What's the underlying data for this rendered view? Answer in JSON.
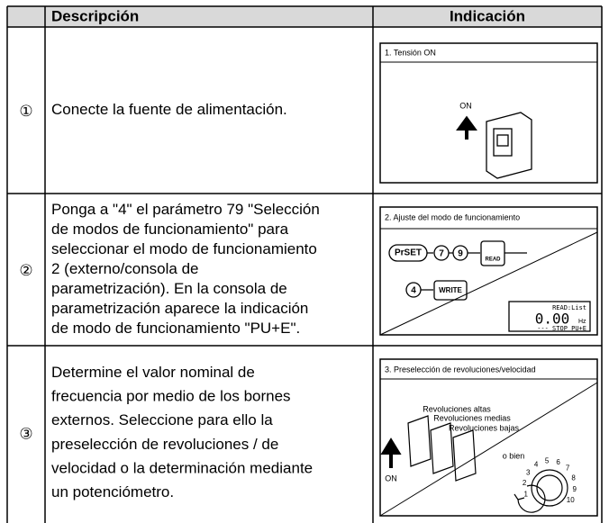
{
  "table": {
    "header": [
      "Descripción",
      "Indicación"
    ],
    "rows": [
      {
        "number": "①",
        "description": [
          "Conecte la fuente de alimentación."
        ],
        "indication": {
          "title": "1. Tensión ON",
          "labels": [
            "ON"
          ]
        }
      },
      {
        "number": "②",
        "description": [
          "Ponga a \"4\" el parámetro 79 \"Selección",
          "de modos de funcionamiento\" para",
          "seleccionar el modo de funcionamiento",
          "2 (externo/consola de",
          "parametrización). En la consola de",
          "parametrización aparece la indicación",
          "de modo de funcionamiento \"PU+E\"."
        ],
        "indication": {
          "title": "2. Ajuste del modo de funcionamiento",
          "labels": [
            "PrSET",
            "7",
            "9",
            "READ",
            "4",
            "WRITE",
            "READ:List",
            "0.00",
            "Hz",
            "--- STOP PU+E"
          ]
        }
      },
      {
        "number": "③",
        "description": [
          "Determine el valor nominal de",
          "frecuencia por medio de los bornes",
          "externos. Seleccione para ello la",
          "preselección de revoluciones / de",
          "velocidad o la determinación mediante",
          "un potenciómetro."
        ],
        "indication": {
          "title": "3. Preselección de revoluciones/velocidad",
          "labels": [
            "Revoluciones altas",
            "Revoluciones medias",
            "Revoluciones bajas",
            "o bien",
            "ON",
            "1",
            "2",
            "3",
            "4",
            "5",
            "6",
            "7",
            "8",
            "9",
            "10"
          ]
        }
      }
    ]
  }
}
